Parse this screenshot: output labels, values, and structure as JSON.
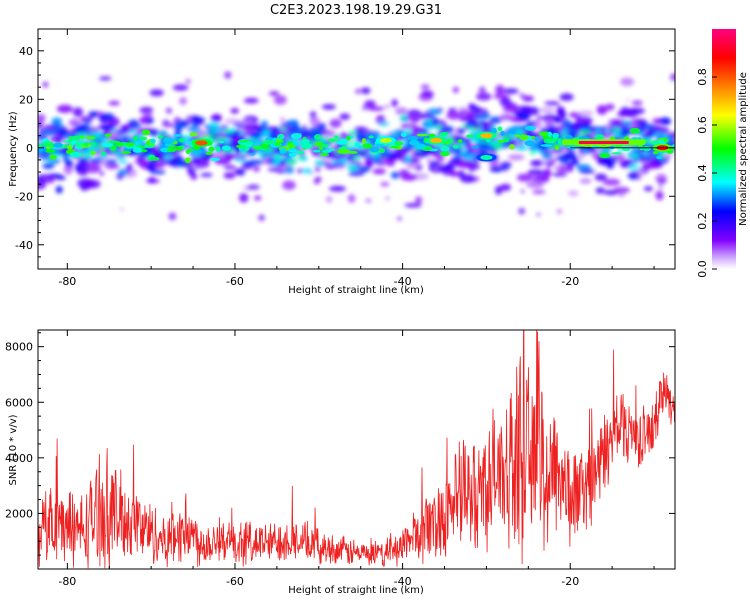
{
  "title": "C2E3.2023.198.19.29.G31",
  "chart_data": [
    {
      "type": "heatmap",
      "xlabel": "Height of straight line (km)",
      "ylabel": "Frequency (Hz)",
      "xlim": [
        -83.5,
        -7.5
      ],
      "ylim": [
        -50,
        49
      ],
      "xticks": [
        -80,
        -60,
        -40,
        -20
      ],
      "yticks": [
        -40,
        -20,
        0,
        20,
        40
      ],
      "colorbar": {
        "label": "Normalized spectral amplitude",
        "range": [
          0,
          1
        ],
        "ticks": [
          0.0,
          0.2,
          0.4,
          0.6,
          0.8
        ],
        "tick_labels": [
          "0.0",
          "0.2",
          "0.4",
          "0.6",
          "0.8"
        ],
        "colormap": [
          "#ffffff",
          "#8000ff",
          "#0000ff",
          "#00ffff",
          "#00ff00",
          "#ffff00",
          "#ff8000",
          "#ff0000",
          "#ff0080"
        ]
      },
      "band_center_hz": [
        {
          "x": -83,
          "y": 1
        },
        {
          "x": -75,
          "y": 1
        },
        {
          "x": -65,
          "y": 1
        },
        {
          "x": -55,
          "y": 1
        },
        {
          "x": -45,
          "y": 1
        },
        {
          "x": -38,
          "y": 2
        },
        {
          "x": -30,
          "y": 4
        },
        {
          "x": -25,
          "y": 4
        },
        {
          "x": -20,
          "y": 2
        },
        {
          "x": -10,
          "y": 1
        },
        {
          "x": -8,
          "y": 0
        }
      ],
      "hotspots": [
        {
          "x": -64,
          "y": 2,
          "amp": 0.8
        },
        {
          "x": -18,
          "y": 2,
          "amp": 0.95
        },
        {
          "x": -16,
          "y": 2,
          "amp": 0.95
        },
        {
          "x": -9,
          "y": 0,
          "amp": 0.9
        },
        {
          "x": -30,
          "y": 5,
          "amp": 0.7
        },
        {
          "x": -36,
          "y": 3,
          "amp": 0.7
        },
        {
          "x": -30,
          "y": -4,
          "amp": 0.4
        },
        {
          "x": -42,
          "y": 3,
          "amp": 0.6
        }
      ]
    },
    {
      "type": "line",
      "xlabel": "Height of straight line (km)",
      "ylabel": "SNR (10 * v/v)",
      "xlim": [
        -83.5,
        -7.5
      ],
      "ylim": [
        0,
        8600
      ],
      "xticks": [
        -80,
        -60,
        -40,
        -20
      ],
      "yticks": [
        2000,
        4000,
        6000,
        8000
      ],
      "series": [
        {
          "color": "#ee2020",
          "x": [
            -83.5,
            -82,
            -80,
            -78,
            -76,
            -75,
            -74,
            -72,
            -70,
            -68,
            -66,
            -64,
            -62,
            -60,
            -58,
            -56,
            -54,
            -52,
            -50,
            -48,
            -46,
            -44,
            -42,
            -40,
            -38,
            -36,
            -34,
            -32,
            -30,
            -28,
            -26,
            -25,
            -24,
            -23,
            -22,
            -20,
            -18,
            -16,
            -14,
            -13,
            -12,
            -10,
            -9,
            -8,
            -7.5
          ],
          "y": [
            1200,
            1800,
            1500,
            1400,
            2300,
            2000,
            1900,
            1700,
            1300,
            1000,
            1500,
            900,
            1100,
            800,
            1000,
            900,
            1100,
            1000,
            800,
            700,
            600,
            500,
            500,
            900,
            1300,
            1700,
            2500,
            2600,
            3100,
            3500,
            4200,
            3600,
            5000,
            3000,
            4000,
            2500,
            3000,
            4000,
            5400,
            5000,
            4700,
            5000,
            6500,
            6000,
            6000
          ],
          "noise": [
            1100,
            1400,
            1300,
            1300,
            2000,
            2200,
            1600,
            1300,
            1100,
            900,
            1200,
            800,
            800,
            700,
            800,
            700,
            800,
            700,
            600,
            500,
            500,
            400,
            400,
            700,
            1000,
            1400,
            1800,
            2000,
            2200,
            2500,
            3300,
            3300,
            3500,
            2800,
            2500,
            1700,
            1500,
            1500,
            1300,
            1200,
            1000,
            1000,
            900,
            700,
            700
          ]
        }
      ]
    }
  ]
}
